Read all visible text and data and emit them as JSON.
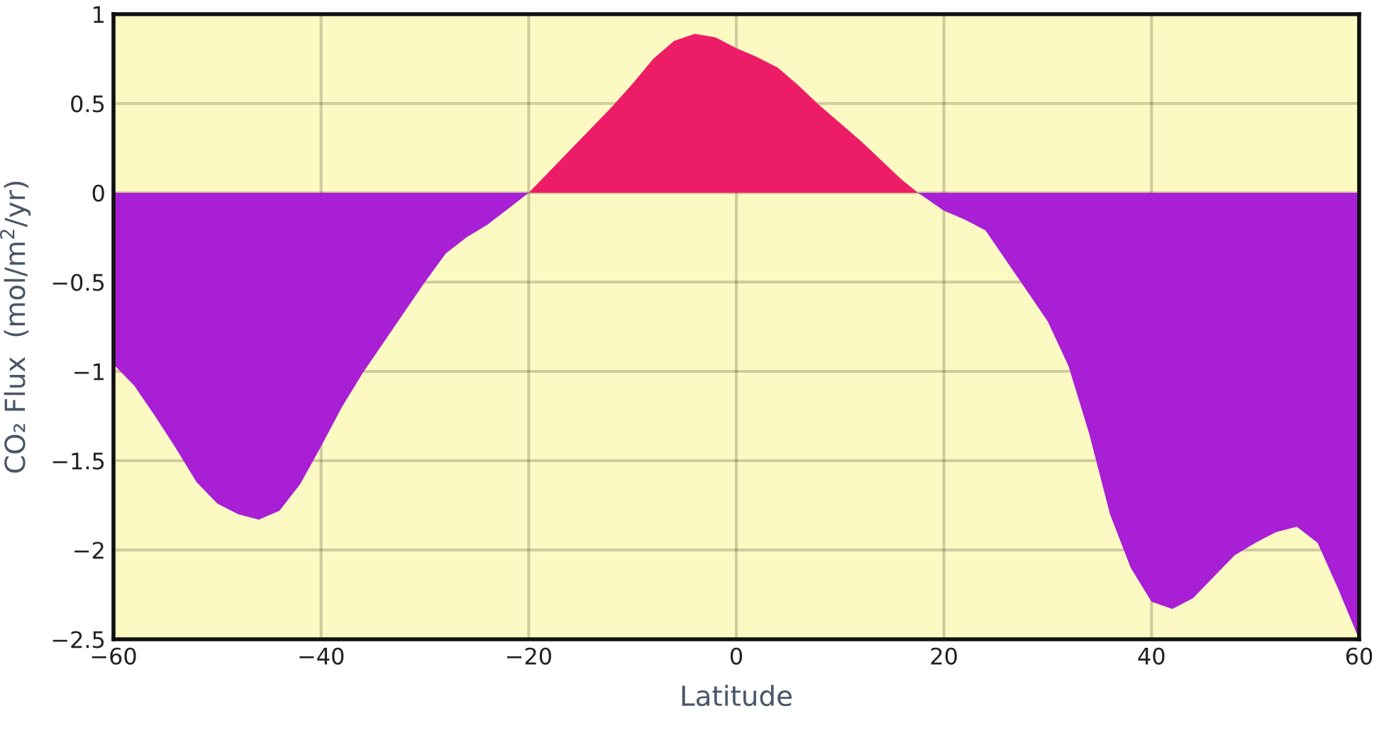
{
  "chart_data": {
    "type": "area",
    "xlabel": "Latitude",
    "ylabel": "CO₂ Flux  (mol/m$^{2}$/yr)",
    "series": [
      {
        "color": "#a81fd5",
        "x": [
          -60,
          -58,
          -56,
          -54,
          -52,
          -50,
          -48,
          -46,
          -44,
          -42,
          -40,
          -38,
          -36,
          -34,
          -32,
          -30,
          -28,
          -26,
          -24,
          -22,
          -20
        ],
        "values": [
          -0.96,
          -1.08,
          -1.25,
          -1.43,
          -1.62,
          -1.74,
          -1.8,
          -1.83,
          -1.78,
          -1.63,
          -1.42,
          -1.2,
          -1.01,
          -0.84,
          -0.67,
          -0.5,
          -0.34,
          -0.25,
          -0.18,
          -0.09,
          0
        ]
      },
      {
        "color": "#ec1c67",
        "x": [
          -20,
          -18,
          -16,
          -14,
          -12,
          -10,
          -8,
          -6,
          -4,
          -2,
          0,
          2,
          4,
          6,
          8,
          10,
          12,
          14,
          16,
          17.5
        ],
        "values": [
          0,
          0.12,
          0.24,
          0.36,
          0.48,
          0.61,
          0.75,
          0.85,
          0.89,
          0.87,
          0.81,
          0.76,
          0.7,
          0.6,
          0.49,
          0.39,
          0.29,
          0.18,
          0.07,
          0
        ]
      },
      {
        "color": "#a81fd5",
        "x": [
          17.5,
          20,
          22,
          24,
          26,
          28,
          30,
          32,
          34,
          36,
          38,
          40,
          42,
          44,
          46,
          48,
          50,
          52,
          54,
          56,
          58,
          60
        ],
        "values": [
          0,
          -0.1,
          -0.15,
          -0.21,
          -0.38,
          -0.55,
          -0.72,
          -0.97,
          -1.35,
          -1.8,
          -2.1,
          -2.29,
          -2.33,
          -2.27,
          -2.15,
          -2.03,
          -1.96,
          -1.9,
          -1.87,
          -1.96,
          -2.22,
          -2.5
        ]
      }
    ],
    "xlim": [
      -60,
      60
    ],
    "xticks": [
      {
        "value": -60,
        "label": "−60"
      },
      {
        "value": -40,
        "label": "−40"
      },
      {
        "value": -20,
        "label": "−20"
      },
      0,
      20,
      40,
      60
    ],
    "ylim": [
      -2.5,
      1
    ],
    "yticks": [
      {
        "value": -2.5,
        "label": "−2.5"
      },
      {
        "value": -2,
        "label": "−2"
      },
      {
        "value": -1.5,
        "label": "−1.5"
      },
      {
        "value": -1,
        "label": "−1"
      },
      {
        "value": -0.5,
        "label": "−0.5"
      },
      0,
      0.5,
      1
    ],
    "grid": true
  }
}
